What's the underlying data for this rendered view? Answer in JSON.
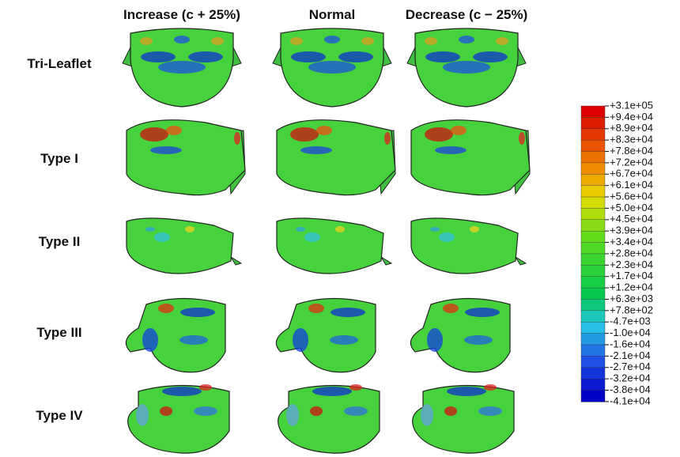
{
  "columns": [
    "Increase (c + 25%)",
    "Normal",
    "Decrease (c − 25%)"
  ],
  "rows": [
    "Tri-Leaflet",
    "Type I",
    "Type II",
    "Type III",
    "Type IV"
  ],
  "colorbar": {
    "labels": [
      "+3.1e+05",
      "+9.4e+04",
      "+8.9e+04",
      "+8.3e+04",
      "+7.8e+04",
      "+7.2e+04",
      "+6.7e+04",
      "+6.1e+04",
      "+5.6e+04",
      "+5.0e+04",
      "+4.5e+04",
      "+3.9e+04",
      "+3.4e+04",
      "+2.8e+04",
      "+2.3e+04",
      "+1.7e+04",
      "+1.2e+04",
      "+6.3e+03",
      "+7.8e+02",
      "-4.7e+03",
      "-1.0e+04",
      "-1.6e+04",
      "-2.1e+04",
      "-2.7e+04",
      "-3.2e+04",
      "-3.8e+04",
      "-4.1e+04"
    ]
  }
}
